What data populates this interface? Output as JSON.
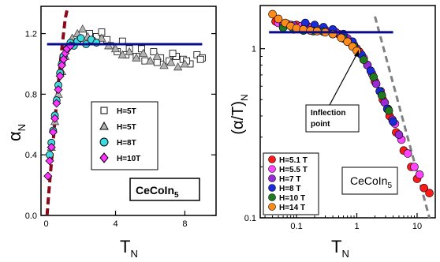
{
  "colors": {
    "line_blue": "#0a0a8c",
    "dash_red": "#8b0a1a",
    "dash_gray": "#808080"
  },
  "chart_data": [
    {
      "type": "scatter",
      "xlabel_main": "T",
      "xlabel_sub": "N",
      "ylabel_main": "α",
      "ylabel_sub": "N",
      "xlim": [
        -0.3,
        9.8
      ],
      "ylim": [
        0,
        1.38
      ],
      "xticks": [
        0,
        4,
        8
      ],
      "xtick_labels": [
        "0",
        "4",
        "8"
      ],
      "yticks": [
        0.0,
        0.4,
        0.8,
        1.2
      ],
      "ytick_labels": [
        "0.0",
        "0.4",
        "0.8",
        "1.2"
      ],
      "legend": "center-right",
      "series": [
        {
          "name": "H=5T",
          "marker": "square",
          "color": "#ffffff",
          "x": [
            2.5,
            2.9,
            3.2,
            3.7,
            4.1,
            4.4,
            4.8,
            5.2,
            5.7,
            6.2,
            6.6,
            7.1,
            7.5,
            7.9,
            8.3,
            8.7,
            9.0,
            3.5,
            4.6,
            5.5,
            6.4,
            7.3,
            8.1,
            8.9
          ],
          "y": [
            1.2,
            1.18,
            1.21,
            1.12,
            1.08,
            1.15,
            1.1,
            1.05,
            1.02,
            1.08,
            1.04,
            1.02,
            1.05,
            1.03,
            1.0,
            1.06,
            1.04,
            1.16,
            1.06,
            1.1,
            1.01,
            1.07,
            1.02,
            1.03
          ]
        },
        {
          "name": "H=5T",
          "marker": "triangle",
          "color": "#b4b4b4",
          "x": [
            0.3,
            0.5,
            0.7,
            0.9,
            1.1,
            1.3,
            1.5,
            1.8,
            2.1,
            2.4,
            2.8,
            3.2,
            3.6,
            4.0,
            4.4,
            4.8,
            5.2,
            5.6,
            6.0,
            6.4,
            6.8,
            7.2,
            7.6,
            8.0
          ],
          "y": [
            0.45,
            0.62,
            0.8,
            0.95,
            1.05,
            1.12,
            1.17,
            1.2,
            1.23,
            1.18,
            1.15,
            1.17,
            1.12,
            1.1,
            1.06,
            1.08,
            1.04,
            1.07,
            1.02,
            1.05,
            0.99,
            1.01,
            0.98,
            1.0
          ]
        },
        {
          "name": "H=8T",
          "marker": "circle",
          "color": "#3fd9e0",
          "x": [
            0.2,
            0.3,
            0.4,
            0.5,
            0.6,
            0.7,
            0.8,
            0.9,
            1.0,
            1.2,
            1.4,
            1.6,
            1.8,
            2.0,
            2.3,
            2.6,
            2.9
          ],
          "y": [
            0.4,
            0.48,
            0.56,
            0.66,
            0.76,
            0.86,
            0.94,
            1.0,
            1.05,
            1.1,
            1.14,
            1.12,
            1.15,
            1.17,
            1.13,
            1.16,
            1.14
          ]
        },
        {
          "name": "H=10T",
          "marker": "diamond",
          "color": "#ff33ff",
          "x": [
            0.1,
            0.2,
            0.3,
            0.4,
            0.5,
            0.6,
            0.7,
            0.8,
            0.9,
            1.0,
            1.1,
            1.2,
            1.4
          ],
          "y": [
            0.26,
            0.36,
            0.45,
            0.55,
            0.64,
            0.74,
            0.83,
            0.92,
            0.99,
            1.03,
            1.07,
            1.1,
            1.12
          ]
        }
      ],
      "guides": [
        {
          "kind": "hline",
          "y": 1.13,
          "x": [
            0.05,
            9.0
          ]
        },
        {
          "kind": "dashed-curve",
          "x": [
            0.05,
            0.15,
            0.3,
            0.5,
            0.7,
            0.9,
            1.1,
            1.25
          ],
          "y": [
            0.0,
            0.15,
            0.35,
            0.62,
            0.87,
            1.1,
            1.3,
            1.38
          ]
        }
      ],
      "annotation_main": "CeCoIn",
      "annotation_sub": "5"
    },
    {
      "type": "scatter",
      "xlabel_main": "T",
      "xlabel_sub": "N",
      "ylabel_main": "(α/T)",
      "ylabel_sub": "N",
      "x_scale": "log",
      "y_scale": "log",
      "xlim": [
        0.025,
        20
      ],
      "ylim": [
        0.1,
        1.8
      ],
      "xticks": [
        0.1,
        1,
        10
      ],
      "xtick_labels": [
        "0.1",
        "1",
        "10"
      ],
      "yticks": [
        0.1,
        1
      ],
      "ytick_labels": [
        "0.1",
        "1"
      ],
      "legend": "bottom-left",
      "series": [
        {
          "name": "H=5.1 T",
          "color": "#ff1a1a",
          "x": [
            0.045,
            0.07,
            0.1,
            0.15,
            0.2,
            0.3,
            0.5,
            0.8,
            1.1,
            1.5,
            2.0,
            2.7,
            3.5,
            4.5,
            6.0,
            8.0,
            10.0,
            13.0,
            16.0
          ],
          "y": [
            1.45,
            1.4,
            1.38,
            1.36,
            1.32,
            1.28,
            1.22,
            1.08,
            0.96,
            0.8,
            0.64,
            0.5,
            0.4,
            0.32,
            0.25,
            0.2,
            0.17,
            0.15,
            0.14
          ]
        },
        {
          "name": "H=5.5 T",
          "color": "#ff44ff",
          "x": [
            0.05,
            0.08,
            0.12,
            0.18,
            0.25,
            0.4,
            0.6,
            0.9,
            1.3,
            1.8,
            2.5,
            3.3,
            4.3,
            5.5,
            7.0,
            9.0,
            11.0
          ],
          "y": [
            1.42,
            1.38,
            1.36,
            1.34,
            1.3,
            1.26,
            1.18,
            1.05,
            0.88,
            0.71,
            0.56,
            0.44,
            0.36,
            0.29,
            0.24,
            0.2,
            0.18
          ]
        },
        {
          "name": "H=7 T",
          "color": "#9a2ad6",
          "x": [
            0.06,
            0.09,
            0.14,
            0.2,
            0.3,
            0.45,
            0.7,
            1.0,
            1.5,
            2.1,
            2.9,
            3.9,
            5.0
          ],
          "y": [
            1.4,
            1.37,
            1.35,
            1.32,
            1.29,
            1.25,
            1.15,
            1.0,
            0.8,
            0.62,
            0.48,
            0.38,
            0.31
          ]
        },
        {
          "name": "H=8 T",
          "color": "#1a2bd9",
          "x": [
            0.14,
            0.2,
            0.28,
            0.4,
            0.6,
            0.85,
            1.2,
            1.7,
            2.4,
            3.2,
            4.0
          ],
          "y": [
            1.42,
            1.38,
            1.34,
            1.3,
            1.22,
            1.1,
            0.92,
            0.74,
            0.56,
            0.44,
            0.37
          ]
        },
        {
          "name": "H=10 T",
          "color": "#1f7a1f",
          "x": [
            0.06,
            0.09,
            0.13,
            0.19,
            0.28,
            0.4,
            0.6,
            0.9,
            1.3,
            1.9,
            2.6,
            3.4
          ],
          "y": [
            1.33,
            1.3,
            1.28,
            1.27,
            1.26,
            1.22,
            1.15,
            1.03,
            0.86,
            0.68,
            0.53,
            0.43
          ]
        },
        {
          "name": "H=14 T",
          "color": "#ff8c1a",
          "x": [
            0.04,
            0.05,
            0.065,
            0.08,
            0.1,
            0.13,
            0.17,
            0.22,
            0.3,
            0.4,
            0.55,
            0.7,
            0.85,
            1.0
          ],
          "y": [
            1.6,
            1.5,
            1.42,
            1.36,
            1.32,
            1.3,
            1.28,
            1.27,
            1.25,
            1.22,
            1.16,
            1.1,
            1.03,
            0.97
          ]
        }
      ],
      "guides": [
        {
          "kind": "hline",
          "y": 1.25,
          "x": [
            0.035,
            4.0
          ]
        },
        {
          "kind": "dashed-line",
          "x": [
            2.0,
            16.0
          ],
          "y": [
            1.55,
            0.1
          ]
        }
      ],
      "annotations": [
        {
          "text_line1": "Inflection",
          "text_line2": "point",
          "arrow_to": [
            0.95,
            0.97
          ]
        }
      ],
      "annotation_main": "CeCoIn",
      "annotation_sub": "5"
    }
  ]
}
